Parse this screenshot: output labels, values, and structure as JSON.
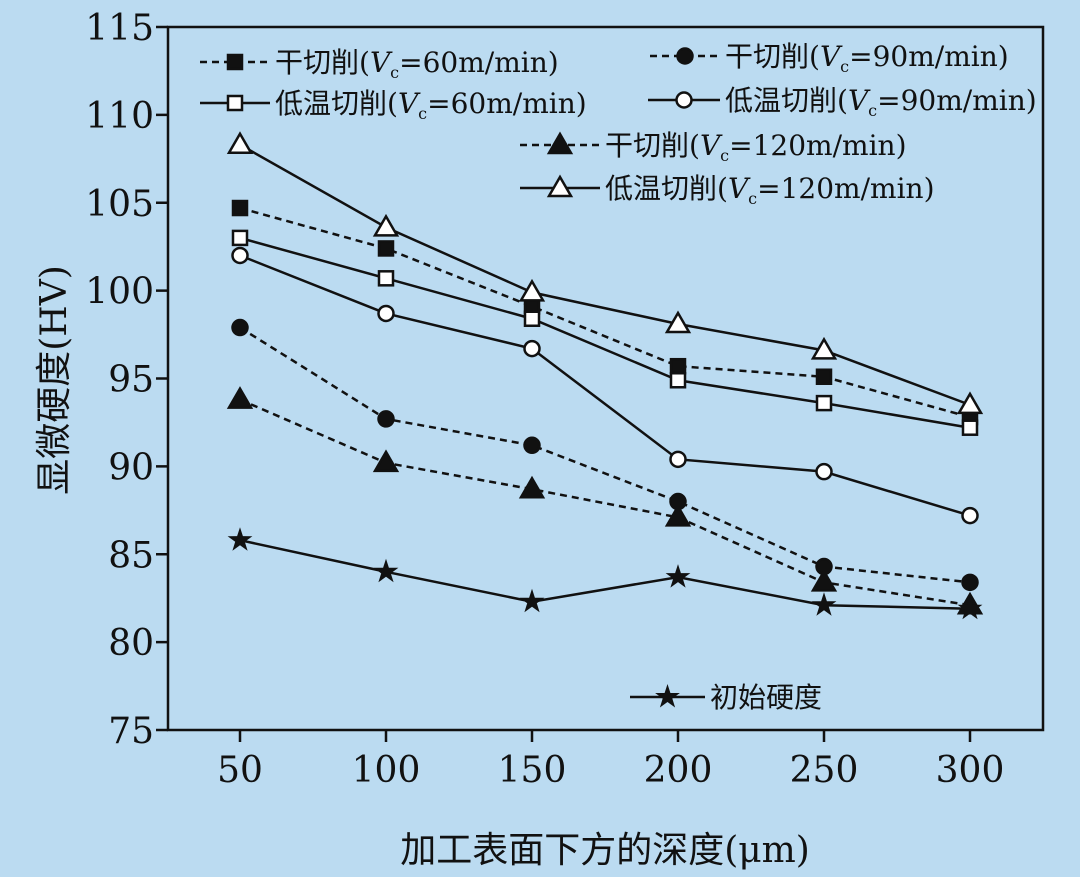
{
  "chart_data": {
    "type": "line",
    "title": "",
    "xlabel": "加工表面下方的深度(μm)",
    "ylabel": "显微硬度(HV)",
    "x": [
      50,
      100,
      150,
      200,
      250,
      300
    ],
    "xlim": [
      25,
      330
    ],
    "ylim": [
      75,
      115
    ],
    "xticks": [
      50,
      100,
      150,
      200,
      250,
      300
    ],
    "yticks": [
      75,
      80,
      85,
      90,
      95,
      100,
      105,
      110,
      115
    ],
    "grid": false,
    "series": [
      {
        "name": "干切削(Vc=60m/min)",
        "marker": "square-filled",
        "dash": true,
        "values": [
          104.7,
          102.4,
          99.1,
          95.7,
          95.1,
          92.8
        ]
      },
      {
        "name": "低温切削(Vc=60m/min)",
        "marker": "square-open",
        "dash": false,
        "values": [
          103.0,
          100.7,
          98.4,
          94.9,
          93.6,
          92.2
        ]
      },
      {
        "name": "干切削(Vc=90m/min)",
        "marker": "circle-filled",
        "dash": true,
        "values": [
          97.9,
          92.7,
          91.2,
          88.0,
          84.3,
          83.4
        ]
      },
      {
        "name": "低温切削(Vc=90m/min)",
        "marker": "circle-open",
        "dash": false,
        "values": [
          102.0,
          98.7,
          96.7,
          90.4,
          89.7,
          87.2
        ]
      },
      {
        "name": "干切削(Vc=120m/min)",
        "marker": "triangle-filled",
        "dash": true,
        "values": [
          93.8,
          90.2,
          88.7,
          87.1,
          83.4,
          82.1
        ]
      },
      {
        "name": "低温切削(Vc=120m/min)",
        "marker": "triangle-open",
        "dash": false,
        "values": [
          108.3,
          103.6,
          99.9,
          98.1,
          96.6,
          93.5
        ]
      },
      {
        "name": "初始硬度",
        "marker": "star",
        "dash": false,
        "values": [
          85.8,
          84.0,
          82.3,
          83.7,
          82.1,
          81.9
        ]
      }
    ]
  }
}
